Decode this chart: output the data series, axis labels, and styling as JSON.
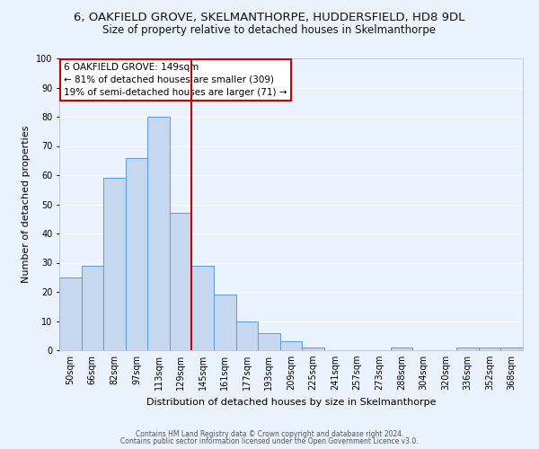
{
  "title": "6, OAKFIELD GROVE, SKELMANTHORPE, HUDDERSFIELD, HD8 9DL",
  "subtitle": "Size of property relative to detached houses in Skelmanthorpe",
  "xlabel": "Distribution of detached houses by size in Skelmanthorpe",
  "ylabel": "Number of detached properties",
  "categories": [
    "50sqm",
    "66sqm",
    "82sqm",
    "97sqm",
    "113sqm",
    "129sqm",
    "145sqm",
    "161sqm",
    "177sqm",
    "193sqm",
    "209sqm",
    "225sqm",
    "241sqm",
    "257sqm",
    "273sqm",
    "288sqm",
    "304sqm",
    "320sqm",
    "336sqm",
    "352sqm",
    "368sqm"
  ],
  "values": [
    25,
    29,
    59,
    66,
    80,
    47,
    29,
    19,
    10,
    6,
    3,
    1,
    0,
    0,
    0,
    1,
    0,
    0,
    1,
    1,
    1
  ],
  "bar_color": "#c5d8f0",
  "bar_edge_color": "#5b9bd5",
  "vline_index": 6,
  "vline_color": "#cc0000",
  "ylim": [
    0,
    100
  ],
  "yticks": [
    0,
    10,
    20,
    30,
    40,
    50,
    60,
    70,
    80,
    90,
    100
  ],
  "annotation_title": "6 OAKFIELD GROVE: 149sqm",
  "annotation_line1": "← 81% of detached houses are smaller (309)",
  "annotation_line2": "19% of semi-detached houses are larger (71) →",
  "annotation_box_color": "#ffffff",
  "annotation_box_edge_color": "#cc0000",
  "footnote1": "Contains HM Land Registry data © Crown copyright and database right 2024.",
  "footnote2": "Contains public sector information licensed under the Open Government Licence v3.0.",
  "background_color": "#eaf2fb",
  "grid_color": "#ffffff",
  "title_fontsize": 9.5,
  "subtitle_fontsize": 8.5,
  "axis_label_fontsize": 8,
  "tick_fontsize": 7,
  "ylabel_fontsize": 8
}
